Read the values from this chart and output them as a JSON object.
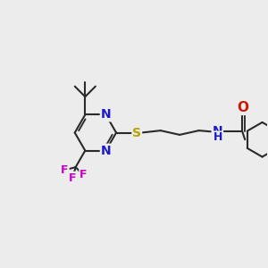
{
  "bg_color": "#ececec",
  "bond_color": "#2a2a2a",
  "line_width": 1.5,
  "atom_colors": {
    "N": "#1a1acc",
    "S": "#b8a000",
    "O": "#cc1800",
    "F": "#cc00cc",
    "NH": "#4a7a7a",
    "C": "#2a2a2a"
  },
  "figsize": [
    3.0,
    3.0
  ],
  "dpi": 100,
  "xlim": [
    0,
    10
  ],
  "ylim": [
    0,
    10
  ]
}
